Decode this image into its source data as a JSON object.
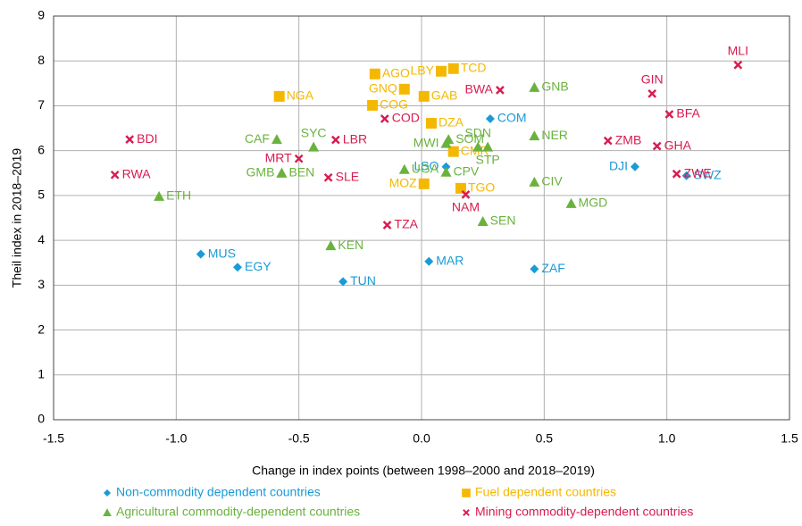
{
  "chart_data": {
    "type": "scatter",
    "x_label": "Change in index points (between 1998–2000 and 2018–2019)",
    "y_label": "Theil index in 2018–2019",
    "xlim": [
      -1.5,
      1.5
    ],
    "ylim": [
      0,
      9
    ],
    "xticks": [
      -1.5,
      {
        "value": -1.0,
        "label": "-1.0"
      },
      -0.5,
      {
        "value": 0.0,
        "label": "0.0"
      },
      0.5,
      {
        "value": 1.0,
        "label": "1.0"
      },
      1.5
    ],
    "yticks": [
      0,
      1,
      2,
      3,
      4,
      5,
      6,
      7,
      8,
      9
    ],
    "grid": true,
    "series": [
      {
        "name": "Non-commodity dependent countries",
        "color": "#1a9ad6",
        "marker": "diamond",
        "labels": [
          "MUS",
          "EGY",
          "TUN",
          "MAR",
          "ZAF",
          "LSO",
          "COM",
          "DJI",
          "SWZ"
        ],
        "x": [
          -0.9,
          -0.75,
          -0.32,
          0.03,
          0.46,
          0.1,
          0.28,
          0.87,
          1.08
        ],
        "values": [
          3.69,
          3.4,
          3.08,
          3.53,
          3.36,
          5.64,
          6.71,
          5.64,
          5.44
        ]
      },
      {
        "name": "Fuel dependent countries",
        "color": "#f5b800",
        "marker": "square",
        "labels": [
          "AGO",
          "NGA",
          "GNQ",
          "COG",
          "GAB",
          "LBY",
          "TCD",
          "DZA",
          "CMR",
          "MOZ",
          "TGO"
        ],
        "x": [
          -0.19,
          -0.58,
          -0.07,
          -0.2,
          0.01,
          0.08,
          0.13,
          0.04,
          0.13,
          0.01,
          0.16
        ],
        "values": [
          7.71,
          7.21,
          7.37,
          7.01,
          7.21,
          7.77,
          7.83,
          6.61,
          5.98,
          5.26,
          5.16
        ]
      },
      {
        "name": "Agricultural commodity-dependent countries",
        "color": "#6ab23e",
        "marker": "triangle",
        "labels": [
          "ETH",
          "CAF",
          "SYC",
          "GMB",
          "BEN",
          "KEN",
          "UGA",
          "MWI",
          "SOM",
          "CPV",
          "SDN",
          "STP",
          "GNB",
          "NER",
          "CIV",
          "SEN",
          "MGD"
        ],
        "x": [
          -1.07,
          -0.59,
          -0.44,
          -0.57,
          -0.57,
          -0.37,
          -0.07,
          0.1,
          0.11,
          0.1,
          0.23,
          0.27,
          0.46,
          0.46,
          0.46,
          0.25,
          0.61
        ],
        "values": [
          4.98,
          6.25,
          6.08,
          5.5,
          5.5,
          3.88,
          5.58,
          6.16,
          6.25,
          5.52,
          6.08,
          6.08,
          7.41,
          6.33,
          5.3,
          4.42,
          4.82
        ]
      },
      {
        "name": "Mining commodity-dependent countries",
        "color": "#d81b50",
        "marker": "x",
        "labels": [
          "BDI",
          "RWA",
          "MRT",
          "LBR",
          "SLE",
          "COD",
          "TZA",
          "BWA",
          "NAM",
          "GIN",
          "MLI",
          "BFA",
          "ZMB",
          "GHA",
          "ZWE"
        ],
        "x": [
          -1.19,
          -1.25,
          -0.5,
          -0.35,
          -0.38,
          -0.15,
          -0.14,
          0.32,
          0.18,
          0.94,
          1.29,
          1.01,
          0.76,
          0.96,
          1.04
        ],
        "values": [
          6.25,
          5.46,
          5.82,
          6.24,
          5.4,
          6.71,
          4.34,
          7.35,
          5.02,
          7.27,
          7.91,
          6.81,
          6.22,
          6.1,
          5.48
        ]
      }
    ]
  }
}
